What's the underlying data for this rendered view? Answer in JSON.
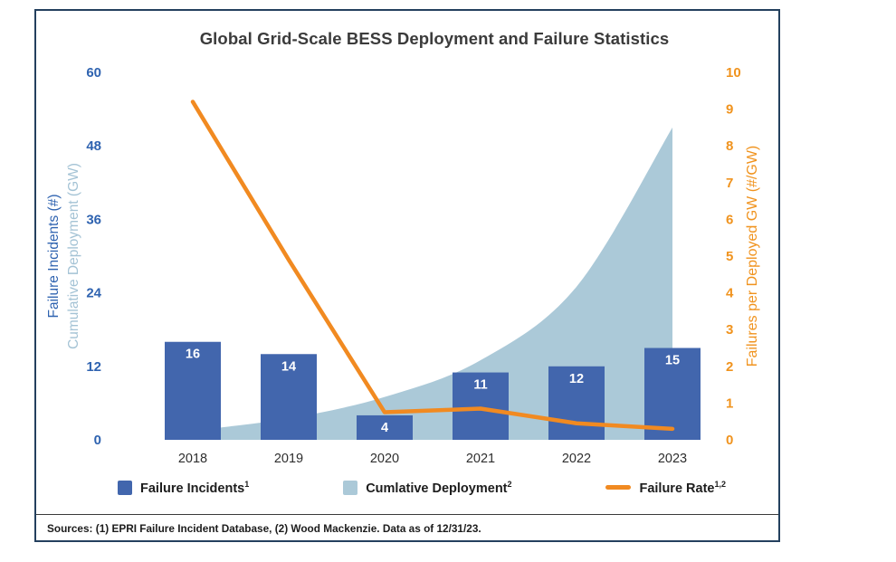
{
  "title": "Global Grid-Scale BESS Deployment and Failure Statistics",
  "chart_data": {
    "type": "combo",
    "title": "Global Grid-Scale BESS Deployment and Failure Statistics",
    "categories": [
      "2018",
      "2019",
      "2020",
      "2021",
      "2022",
      "2023"
    ],
    "series": [
      {
        "name": "Failure Incidents",
        "type": "bar",
        "axis": "left",
        "color": "#4266ad",
        "values": [
          16,
          14,
          4,
          11,
          12,
          15
        ]
      },
      {
        "name": "Cumlative Deployment",
        "type": "area",
        "axis": "left",
        "color": "#abc9d8",
        "values": [
          1.5,
          3.5,
          7,
          13,
          25,
          51
        ]
      },
      {
        "name": "Failure Rate",
        "type": "line",
        "axis": "right",
        "color": "#f18a21",
        "values": [
          9.2,
          4.9,
          0.75,
          0.85,
          0.45,
          0.3
        ]
      }
    ],
    "left_axis": {
      "labels": [
        "Failure Incidents (#)",
        "Cumulative Deployment (GW)"
      ],
      "label_colors": [
        "#2f63b0",
        "#a4c3d5"
      ],
      "ticks": [
        0,
        12,
        24,
        36,
        48,
        60
      ],
      "range": [
        0,
        60
      ],
      "tick_color": "#2f63b0"
    },
    "right_axis": {
      "label": "Failures per Deployed GW (#/GW)",
      "label_color": "#f0931e",
      "ticks": [
        0,
        1,
        2,
        3,
        4,
        5,
        6,
        7,
        8,
        9,
        10
      ],
      "range": [
        0,
        10
      ],
      "tick_color": "#f0931e"
    },
    "x_tick_color": "#2e2e2e",
    "bar_label_color": "#ffffff",
    "grid": false,
    "legend_position": "bottom"
  },
  "legend": {
    "items": [
      {
        "label": "Failure Incidents",
        "sup": "1",
        "marker": "square",
        "color": "#4266ad"
      },
      {
        "label": "Cumlative Deployment",
        "sup": "2",
        "marker": "square",
        "color": "#abc9d8"
      },
      {
        "label": "Failure Rate",
        "sup": "1,2",
        "marker": "line",
        "color": "#f18a21"
      }
    ]
  },
  "footer": {
    "sources": "Sources: (1) EPRI Failure Incident Database, (2) Wood Mackenzie. Data as of 12/31/23."
  }
}
